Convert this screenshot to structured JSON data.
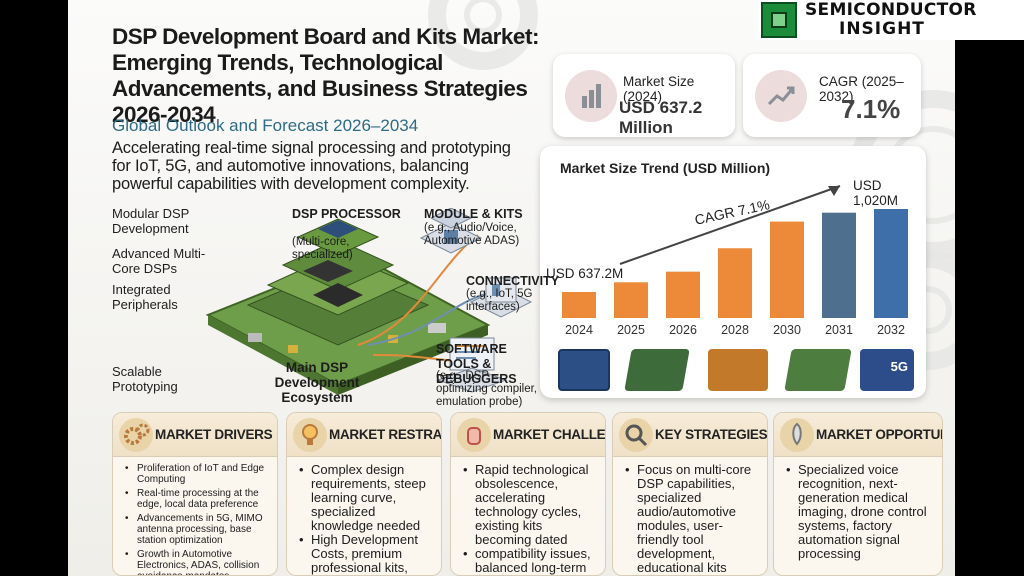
{
  "brand": {
    "line1": "SEMICONDUCTOR",
    "line2": "INSIGHT"
  },
  "title": "DSP Development Board and Kits Market: Emerging Trends, Technological Advancements, and Business Strategies 2026-2034",
  "subtitle": "Global Outlook and Forecast 2026–2034",
  "description": "Accelerating real-time signal processing and prototyping for IoT, 5G, and automotive innovations, balancing powerful capabilities with development complexity.",
  "stats": {
    "market_size": {
      "label": "Market Size (2024)",
      "value": "USD 637.2 Million",
      "icon": "bar-chart-icon"
    },
    "cagr": {
      "label": "CAGR (2025–2032)",
      "value": "7.1%",
      "icon": "trend-up-icon"
    }
  },
  "diagram": {
    "modular": "Modular DSP Development",
    "multicore": "Advanced Multi-Core DSPs",
    "peripherals": "Integrated Peripherals",
    "scalable": "Scalable Prototyping",
    "processor_title": "DSP PROCESSOR",
    "processor_sub": "(Multi-core, specialized)",
    "module_title": "MODULE & KITS",
    "module_sub": "(e.g., Audio/Voice, Automotive ADAS)",
    "connectivity_title": "CONNECTIVITY",
    "connectivity_sub": "(e.g., IoT, 5G interfaces)",
    "software_title": "SOFTWARE TOOLS & DEBUGGERS",
    "software_sub": "(e.g., DSP optimizing compiler, emulation probe)",
    "ecosystem": "Main DSP Development Ecosystem"
  },
  "chart_data": {
    "type": "bar",
    "title": "Market Size Trend (USD Million)",
    "categories": [
      "2024",
      "2025",
      "2026",
      "2028",
      "2030",
      "2031",
      "2032"
    ],
    "values": [
      637.2,
      682,
      731,
      839,
      962,
      1003,
      1020
    ],
    "annotations": {
      "start": "USD 637.2M",
      "end": "USD 1,020M",
      "cagr": "CAGR 7.1%"
    },
    "bar_colors": [
      "#ec8a3a",
      "#ec8a3a",
      "#ec8a3a",
      "#ec8a3a",
      "#ec8a3a",
      "#4f6f8e",
      "#3e6fa8"
    ],
    "grid": false,
    "board_label": "5G"
  },
  "boxes": [
    {
      "title": "MARKET DRIVERS",
      "icon": "gears-icon",
      "size": "small",
      "items": [
        "Proliferation of IoT and Edge Computing",
        "Real-time processing at the edge, local data preference",
        "Advancements in 5G, MIMO antenna processing, base station optimization",
        "Growth in Automotive Electronics, ADAS, collision avoidance mandates"
      ]
    },
    {
      "title": "MARKET RESTRAINTS",
      "icon": "lightbulb-icon",
      "size": "big",
      "items": [
        "Complex design requirements, steep learning curve, specialized knowledge needed",
        "High Development Costs, premium professional kits, softare tool investments"
      ]
    },
    {
      "title": "MARKET CHALLENGES",
      "icon": "hand-icon",
      "size": "big",
      "items": [
        "Rapid technological obsolescence, accelerating technology cycles, existing kits becoming dated",
        "compatibility issues, balanced long-term support needed"
      ]
    },
    {
      "title": "KEY STRATEGIES",
      "icon": "magnifier-icon",
      "size": "big",
      "items": [
        "Focus on multi-core DSP capabilities, specialized audio/automotive modules, user-friendly tool development, educational kits"
      ]
    },
    {
      "title": "MARKET OPPORTUNITIES",
      "icon": "rocket-icon",
      "size": "big",
      "items": [
        "Specialized voice recognition, next-generation medical imaging, drone control systems, factory automation signal processing"
      ]
    }
  ]
}
